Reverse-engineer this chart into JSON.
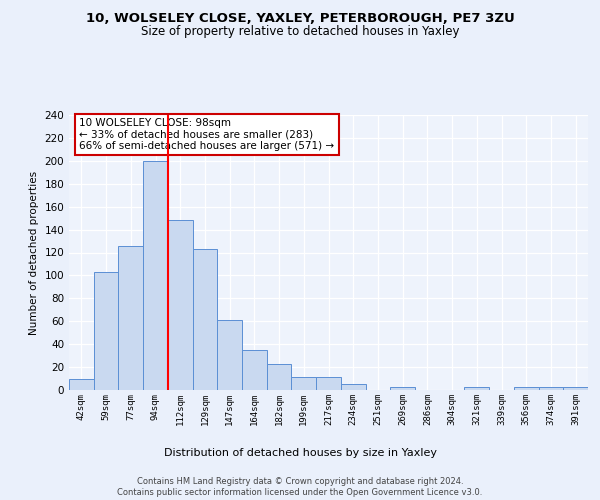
{
  "title1": "10, WOLSELEY CLOSE, YAXLEY, PETERBOROUGH, PE7 3ZU",
  "title2": "Size of property relative to detached houses in Yaxley",
  "xlabel": "Distribution of detached houses by size in Yaxley",
  "ylabel": "Number of detached properties",
  "categories": [
    "42sqm",
    "59sqm",
    "77sqm",
    "94sqm",
    "112sqm",
    "129sqm",
    "147sqm",
    "164sqm",
    "182sqm",
    "199sqm",
    "217sqm",
    "234sqm",
    "251sqm",
    "269sqm",
    "286sqm",
    "304sqm",
    "321sqm",
    "339sqm",
    "356sqm",
    "374sqm",
    "391sqm"
  ],
  "values": [
    10,
    103,
    126,
    200,
    148,
    123,
    61,
    35,
    23,
    11,
    11,
    5,
    0,
    3,
    0,
    0,
    3,
    0,
    3,
    3,
    3
  ],
  "bar_color": "#c9d9f0",
  "bar_edge_color": "#5b8fd4",
  "red_line_index": 3,
  "annotation_text": "10 WOLSELEY CLOSE: 98sqm\n← 33% of detached houses are smaller (283)\n66% of semi-detached houses are larger (571) →",
  "annotation_box_color": "#ffffff",
  "annotation_box_edge": "#cc0000",
  "footer": "Contains HM Land Registry data © Crown copyright and database right 2024.\nContains public sector information licensed under the Open Government Licence v3.0.",
  "ylim": [
    0,
    240
  ],
  "yticks": [
    0,
    20,
    40,
    60,
    80,
    100,
    120,
    140,
    160,
    180,
    200,
    220,
    240
  ],
  "bg_color": "#eaf0fb",
  "plot_bg_color": "#eef3fc"
}
